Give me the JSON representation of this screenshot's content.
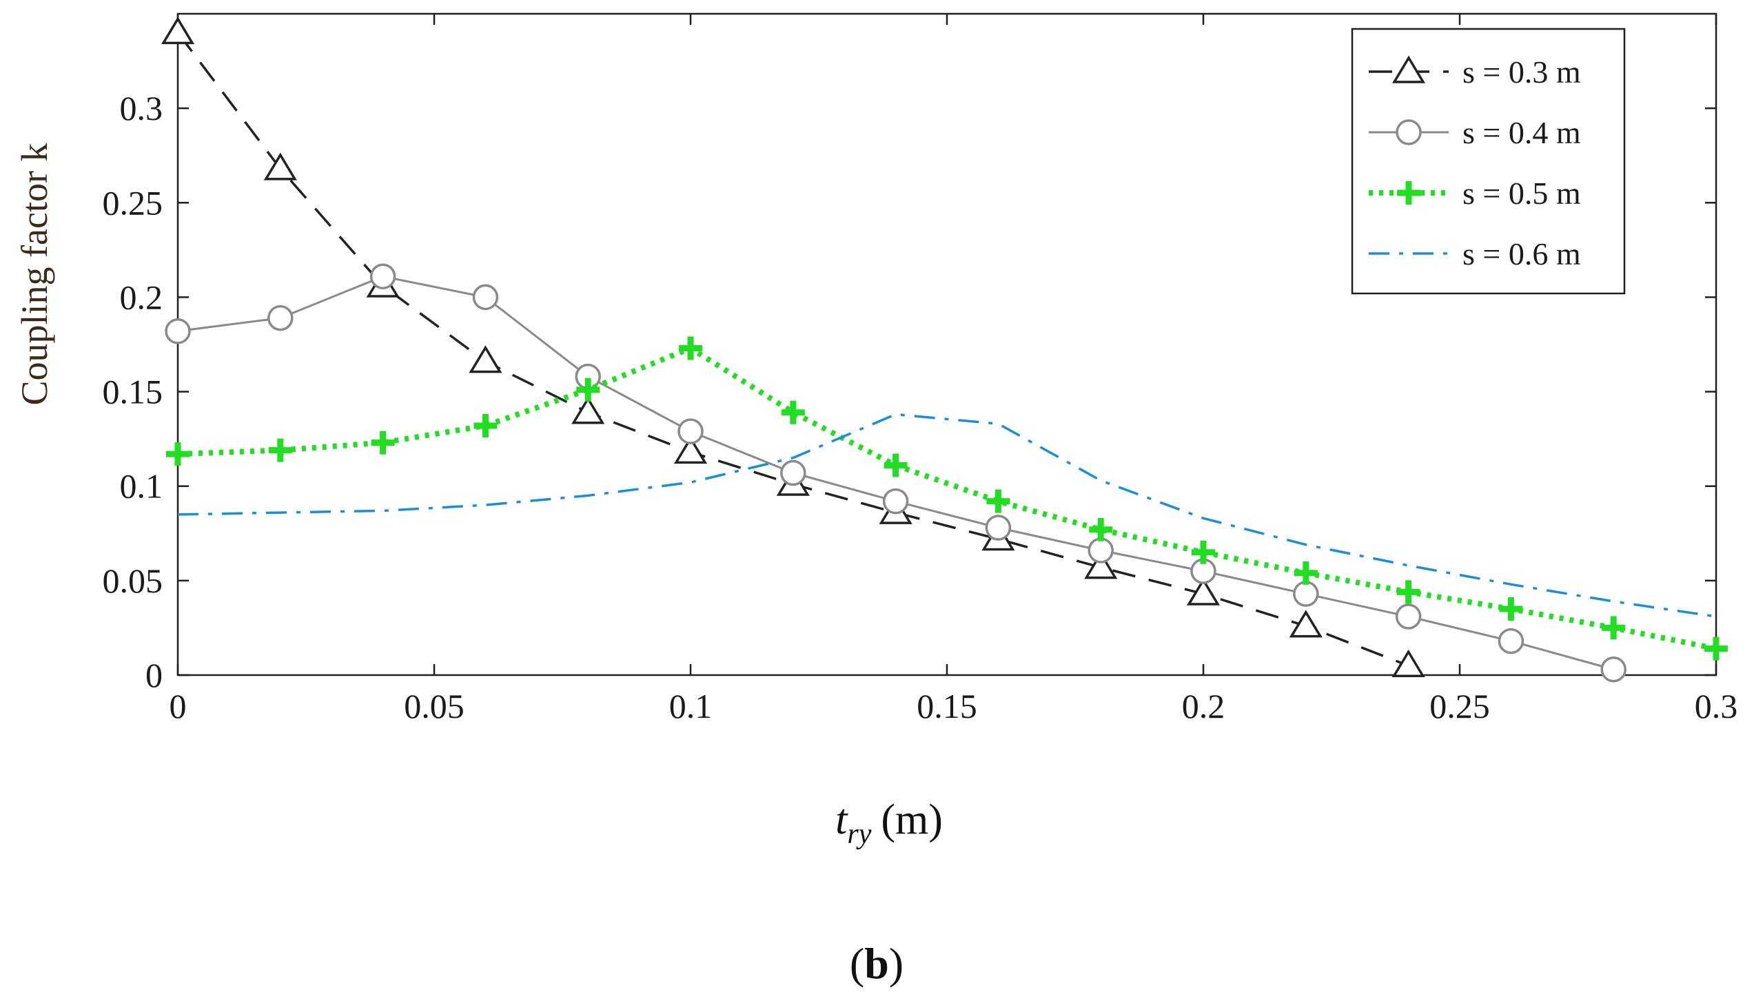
{
  "chart_data": {
    "type": "line",
    "title": "",
    "xlabel": "t_ry (m)",
    "xlabel_main": "t",
    "xlabel_sub": "ry",
    "xlabel_unit": "(m)",
    "ylabel": "Coupling factor k",
    "xlim": [
      0,
      0.3
    ],
    "ylim": [
      0,
      0.35
    ],
    "xticks": [
      0,
      0.05,
      0.1,
      0.15,
      0.2,
      0.25,
      0.3
    ],
    "xtick_labels": [
      "0",
      "0.05",
      "0.1",
      "0.15",
      "0.2",
      "0.25",
      "0.3"
    ],
    "yticks": [
      0,
      0.05,
      0.1,
      0.15,
      0.2,
      0.25,
      0.3
    ],
    "ytick_labels": [
      "0",
      "0.05",
      "0.1",
      "0.15",
      "0.2",
      "0.25",
      "0.3"
    ],
    "legend_position": "top-right",
    "caption": "(b)",
    "caption_open": "(",
    "caption_bold": "b",
    "caption_close": ")",
    "series": [
      {
        "name": "s = 0.3 m",
        "color": "#222222",
        "dash": "dashed",
        "marker": "triangle",
        "x": [
          0,
          0.02,
          0.04,
          0.06,
          0.08,
          0.1,
          0.12,
          0.14,
          0.16,
          0.18,
          0.2,
          0.22,
          0.24
        ],
        "y": [
          0.34,
          0.268,
          0.206,
          0.166,
          0.139,
          0.118,
          0.101,
          0.086,
          0.072,
          0.057,
          0.043,
          0.026,
          0.005
        ]
      },
      {
        "name": "s = 0.4 m",
        "color": "#8a8a8a",
        "dash": "solid",
        "marker": "circle",
        "x": [
          0,
          0.02,
          0.04,
          0.06,
          0.08,
          0.1,
          0.12,
          0.14,
          0.16,
          0.18,
          0.2,
          0.22,
          0.24,
          0.26,
          0.28
        ],
        "y": [
          0.182,
          0.189,
          0.211,
          0.2,
          0.158,
          0.129,
          0.107,
          0.092,
          0.078,
          0.066,
          0.055,
          0.043,
          0.031,
          0.018,
          0.003
        ]
      },
      {
        "name": "s = 0.5 m",
        "color": "#22dd22",
        "dash": "dotted",
        "marker": "plus",
        "x": [
          0,
          0.02,
          0.04,
          0.06,
          0.08,
          0.1,
          0.12,
          0.14,
          0.16,
          0.18,
          0.2,
          0.22,
          0.24,
          0.26,
          0.28,
          0.3
        ],
        "y": [
          0.117,
          0.119,
          0.123,
          0.132,
          0.151,
          0.173,
          0.139,
          0.111,
          0.092,
          0.077,
          0.065,
          0.054,
          0.044,
          0.035,
          0.025,
          0.014
        ]
      },
      {
        "name": "s = 0.6 m",
        "color": "#1a8fd8",
        "dash": "dashdot",
        "marker": "none",
        "x": [
          0,
          0.02,
          0.04,
          0.06,
          0.08,
          0.1,
          0.12,
          0.14,
          0.16,
          0.18,
          0.2,
          0.22,
          0.24,
          0.26,
          0.28,
          0.3
        ],
        "y": [
          0.085,
          0.086,
          0.087,
          0.09,
          0.095,
          0.102,
          0.115,
          0.138,
          0.133,
          0.103,
          0.083,
          0.069,
          0.058,
          0.048,
          0.039,
          0.031
        ]
      }
    ]
  }
}
